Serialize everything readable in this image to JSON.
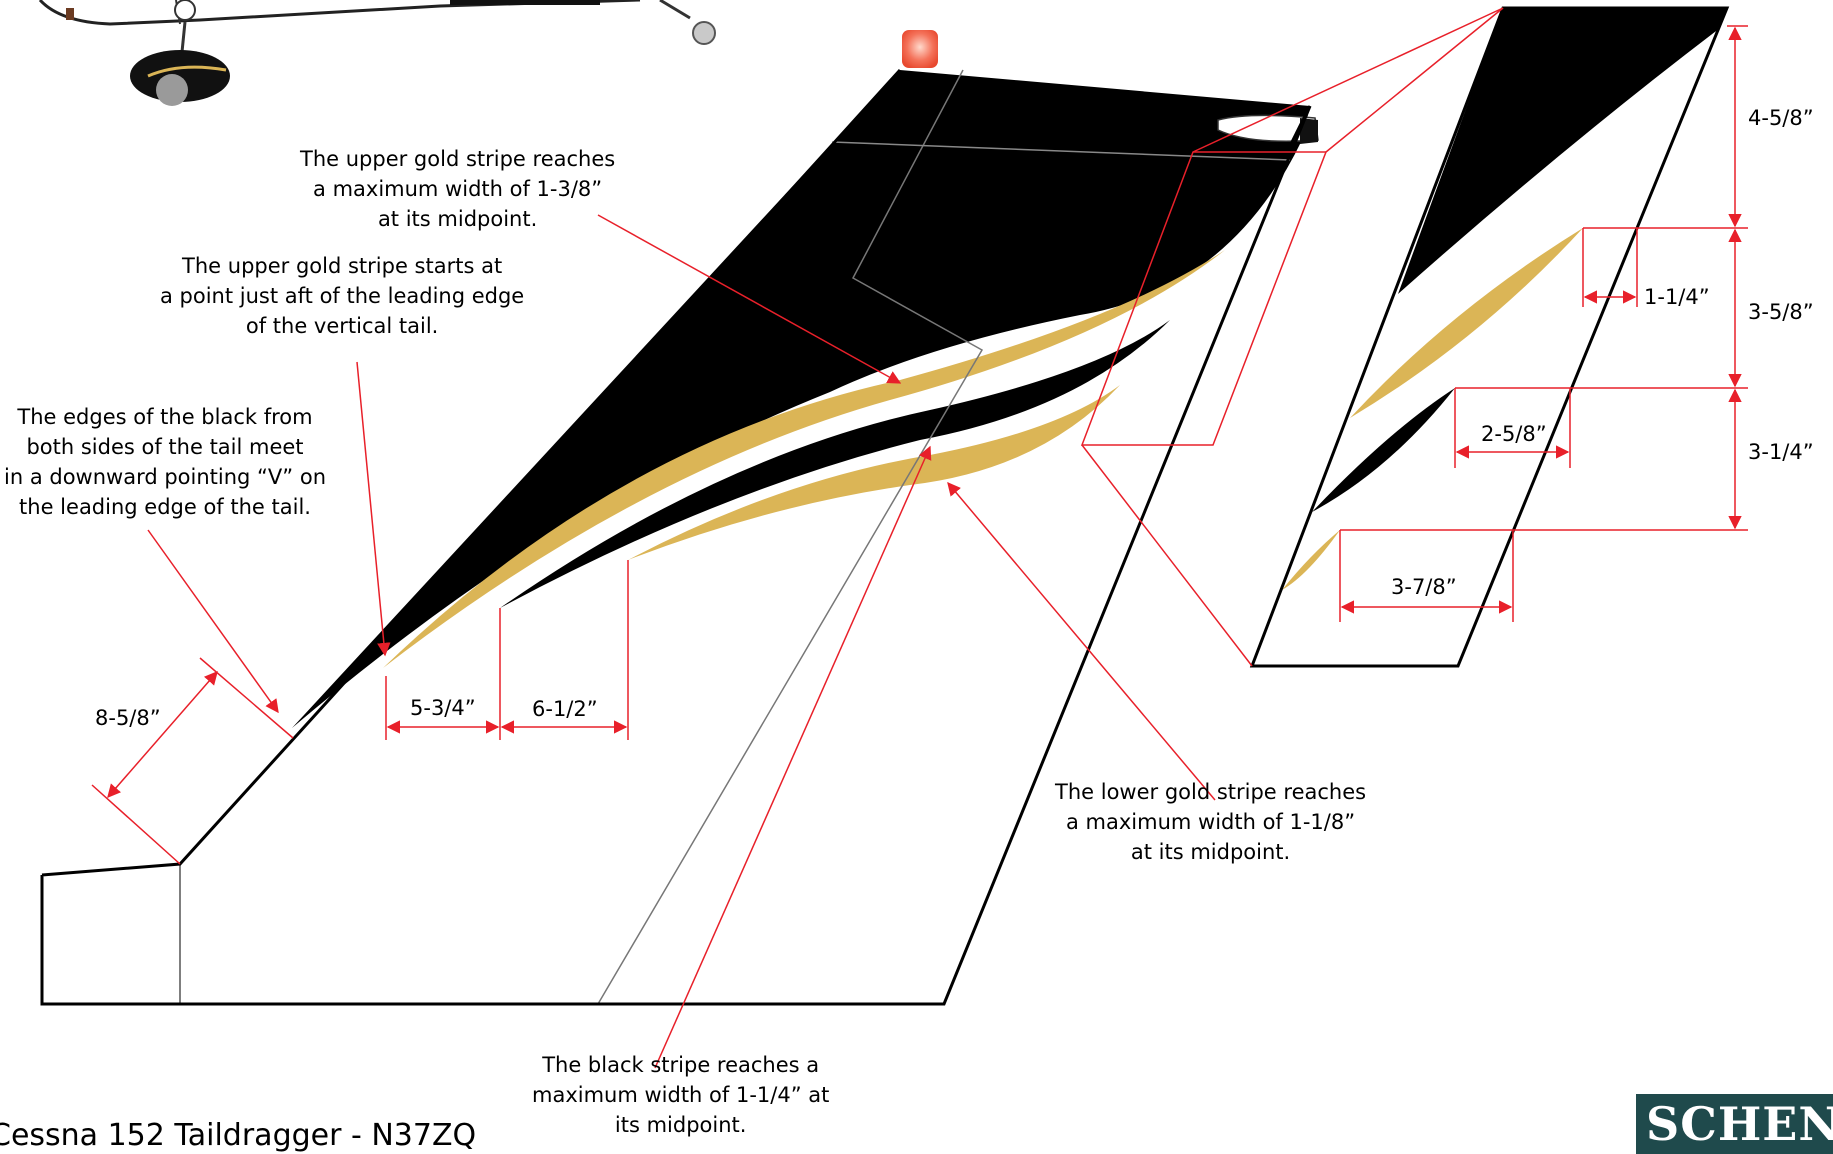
{
  "title": "Cessna 152 Taildragger - N37ZQ",
  "logo_text": "SCHEN",
  "colors": {
    "black": "#000000",
    "gold": "#dbb556",
    "callout_red": "#e8202a",
    "beacon": "#f4725a"
  },
  "notes": {
    "upper_gold_width": "The upper gold stripe reaches\na maximum width of 1-3/8”\nat its midpoint.",
    "upper_gold_start": "The upper gold stripe starts at\na point just aft of the leading edge\nof the vertical tail.",
    "black_edges_v": "The edges of the black from\nboth sides of the tail meet\nin a downward pointing “V” on\nthe leading edge of the tail.",
    "lower_gold_width": "The lower gold stripe reaches\na maximum width of 1-1/8”\nat its midpoint.",
    "black_stripe_width": "The black stripe reaches a\nmaximum width of 1-1/4” at\nits midpoint."
  },
  "dimensions": {
    "leading_edge": "8-5/8”",
    "gap_a": "5-3/4”",
    "gap_b": "6-1/2”",
    "right_top": "4-5/8”",
    "right_mid": "3-5/8”",
    "right_low": "3-1/4”",
    "stripe_offset_1": "1-1/4”",
    "stripe_offset_2": "2-5/8”",
    "stripe_offset_3": "3-7/8”"
  }
}
